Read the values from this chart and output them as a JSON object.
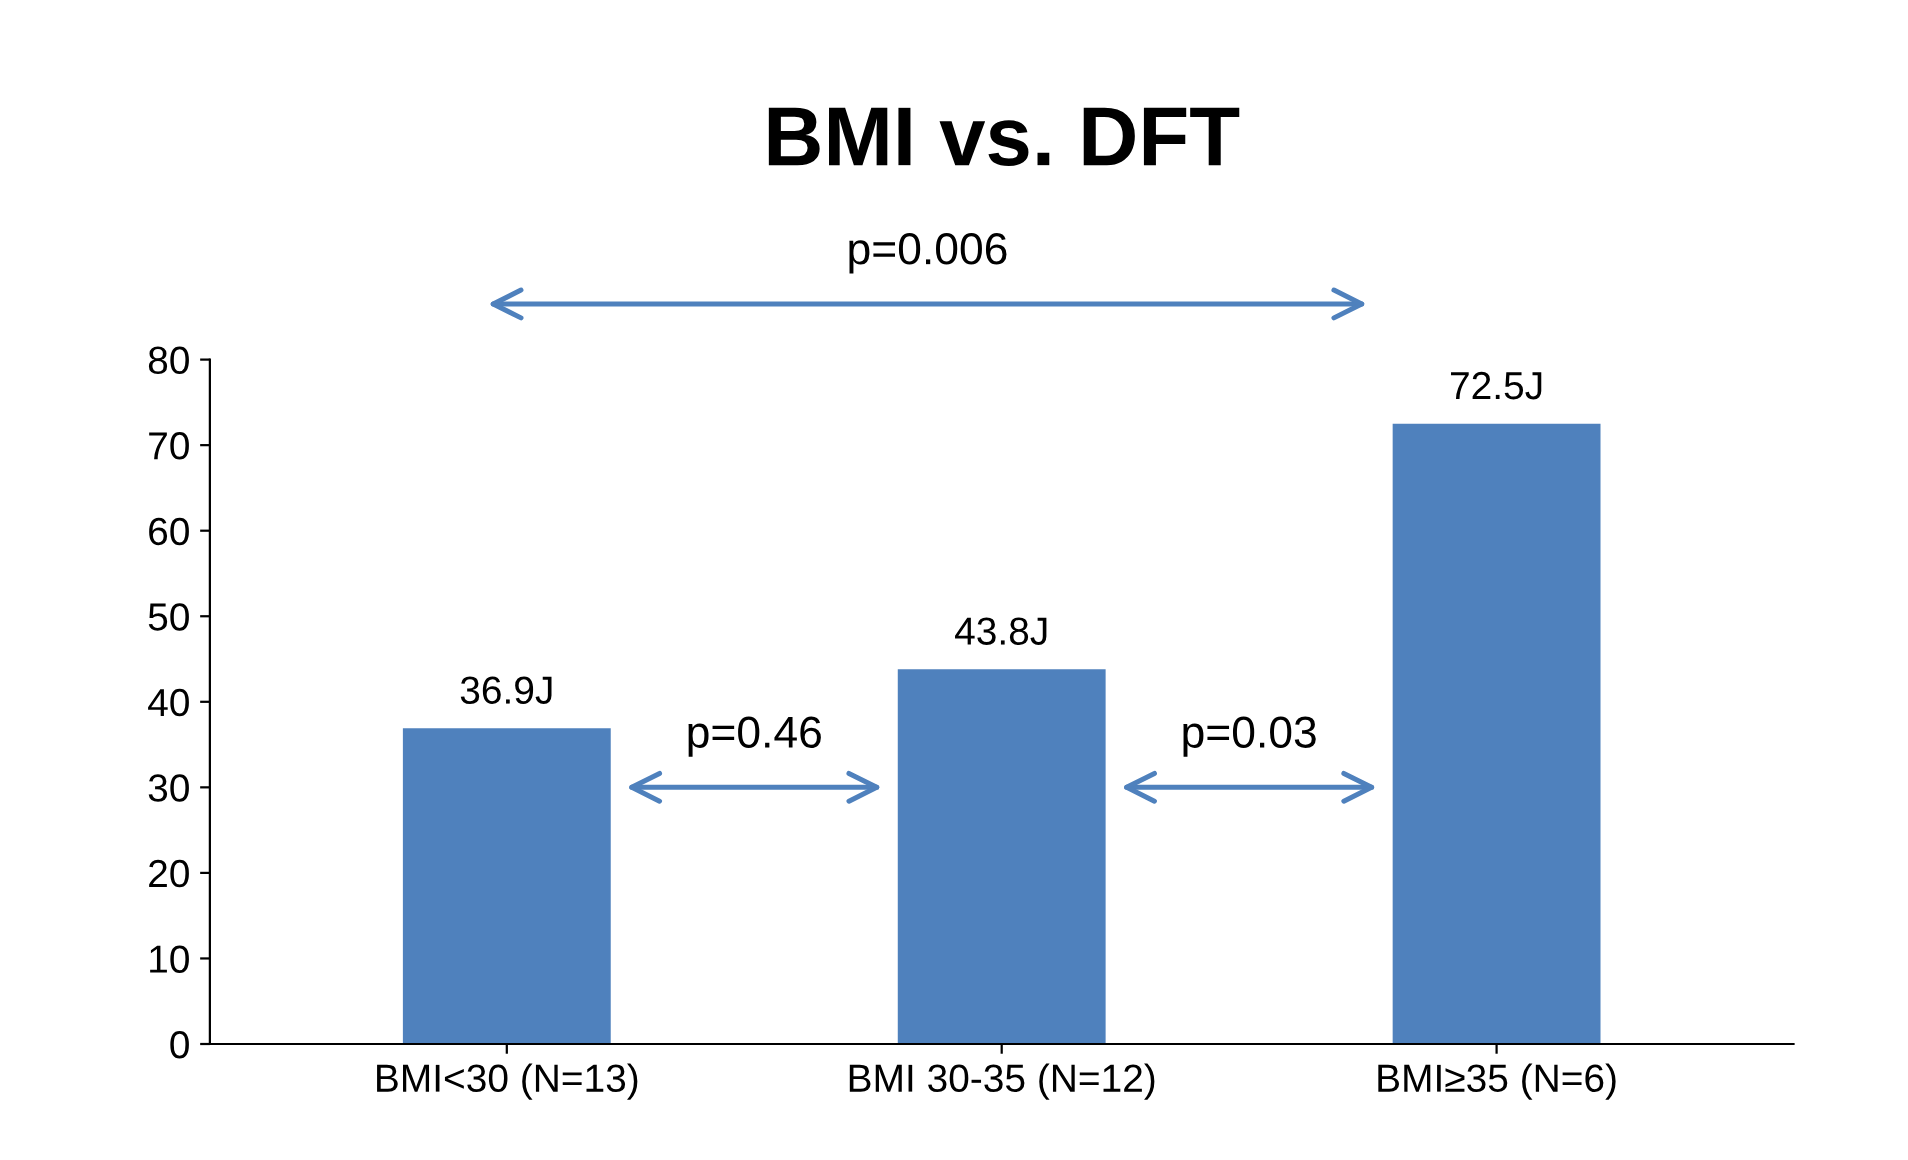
{
  "chart_data": {
    "type": "bar",
    "title": "BMI vs. DFT",
    "categories": [
      "BMI<30 (N=13)",
      "BMI 30-35 (N=12)",
      "BMI≥35 (N=6)"
    ],
    "values": [
      36.9,
      43.8,
      72.5
    ],
    "value_labels": [
      "36.9J",
      "43.8J",
      "72.5J"
    ],
    "color": "#4f81bd",
    "ylim": [
      0,
      80
    ],
    "yticks": [
      0,
      10,
      20,
      30,
      40,
      50,
      60,
      70,
      80
    ],
    "grid": false,
    "legend": false,
    "annotations": [
      "p=0.006",
      "p=0.46",
      "p=0.03"
    ]
  }
}
